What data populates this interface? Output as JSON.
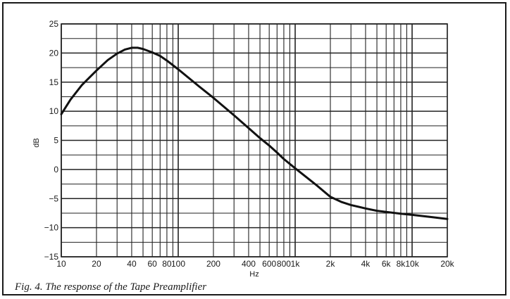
{
  "chart_data": {
    "type": "line",
    "title": "",
    "xlabel": "Hz",
    "ylabel": "dB",
    "xscale": "log",
    "xlim": [
      10,
      20000
    ],
    "ylim": [
      -15,
      25
    ],
    "grid": true,
    "x_ticks": [
      {
        "value": 10,
        "label": "10"
      },
      {
        "value": 20,
        "label": "20"
      },
      {
        "value": 40,
        "label": "40"
      },
      {
        "value": 60,
        "label": "60"
      },
      {
        "value": 80,
        "label": "80"
      },
      {
        "value": 100,
        "label": "100"
      },
      {
        "value": 200,
        "label": "200"
      },
      {
        "value": 400,
        "label": "400"
      },
      {
        "value": 600,
        "label": "600"
      },
      {
        "value": 800,
        "label": "800"
      },
      {
        "value": 1000,
        "label": "1k"
      },
      {
        "value": 2000,
        "label": "2k"
      },
      {
        "value": 4000,
        "label": "4k"
      },
      {
        "value": 6000,
        "label": "6k"
      },
      {
        "value": 8000,
        "label": "8k"
      },
      {
        "value": 10000,
        "label": "10k"
      },
      {
        "value": 20000,
        "label": "20k"
      }
    ],
    "y_ticks": [
      {
        "value": 25,
        "label": "25"
      },
      {
        "value": 20,
        "label": "20"
      },
      {
        "value": 15,
        "label": "15"
      },
      {
        "value": 10,
        "label": "10"
      },
      {
        "value": 5,
        "label": "5"
      },
      {
        "value": 0,
        "label": "0"
      },
      {
        "value": -5,
        "label": "−5"
      },
      {
        "value": -10,
        "label": "−10"
      },
      {
        "value": -15,
        "label": "−15"
      }
    ],
    "series": [
      {
        "x": [
          10,
          12,
          15,
          20,
          25,
          30,
          35,
          40,
          45,
          50,
          60,
          70,
          80,
          100,
          150,
          200,
          300,
          400,
          500,
          600,
          700,
          800,
          1000,
          1500,
          2000,
          2500,
          3000,
          4000,
          5000,
          6000,
          8000,
          10000,
          15000,
          20000
        ],
        "y": [
          9.5,
          12,
          14.5,
          17,
          18.8,
          19.9,
          20.6,
          20.9,
          20.9,
          20.7,
          20.1,
          19.5,
          18.7,
          17.2,
          14.3,
          12.3,
          9.3,
          7.1,
          5.4,
          4.1,
          2.9,
          1.8,
          0.2,
          -2.6,
          -4.7,
          -5.6,
          -6.1,
          -6.7,
          -7.1,
          -7.3,
          -7.6,
          -7.8,
          -8.2,
          -8.5
        ],
        "color": "#111111"
      }
    ]
  },
  "caption": "Fig. 4. The response of the Tape Preamplifier"
}
